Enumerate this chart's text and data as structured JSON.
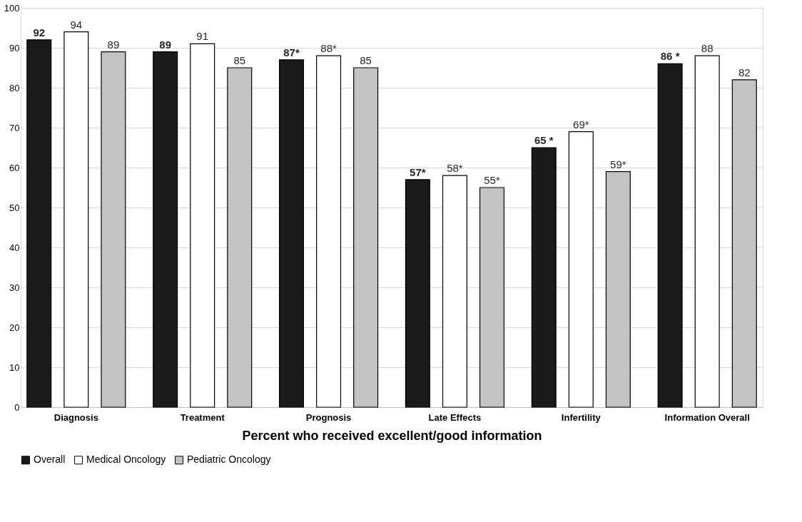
{
  "chart_data": {
    "type": "bar",
    "xlabel": "Percent who received excellent/good information",
    "categories": [
      "Diagnosis",
      "Treatment",
      "Prognosis",
      "Late Effects",
      "Infertility",
      "Information Overall"
    ],
    "series": [
      {
        "name": "Overall",
        "color": "#1a1a1a",
        "values": [
          92,
          89,
          87,
          57,
          65,
          86
        ],
        "value_labels": [
          "92",
          "89",
          "87*",
          "57*",
          "65 *",
          "86 *"
        ]
      },
      {
        "name": "Medical Oncology",
        "color": "#ffffff",
        "values": [
          94,
          91,
          88,
          58,
          69,
          88
        ],
        "value_labels": [
          "94",
          "91",
          "88*",
          "58*",
          "69*",
          "88"
        ]
      },
      {
        "name": "Pediatric Oncology",
        "color": "#c4c4c4",
        "values": [
          89,
          85,
          85,
          55,
          59,
          82
        ],
        "value_labels": [
          "89",
          "85",
          "85",
          "55*",
          "59*",
          "82"
        ]
      }
    ],
    "ylim": [
      0,
      100
    ],
    "yticks": [
      0,
      10,
      20,
      30,
      40,
      50,
      60,
      70,
      80,
      90,
      100
    ],
    "grid": "y",
    "legend": "bottom"
  }
}
